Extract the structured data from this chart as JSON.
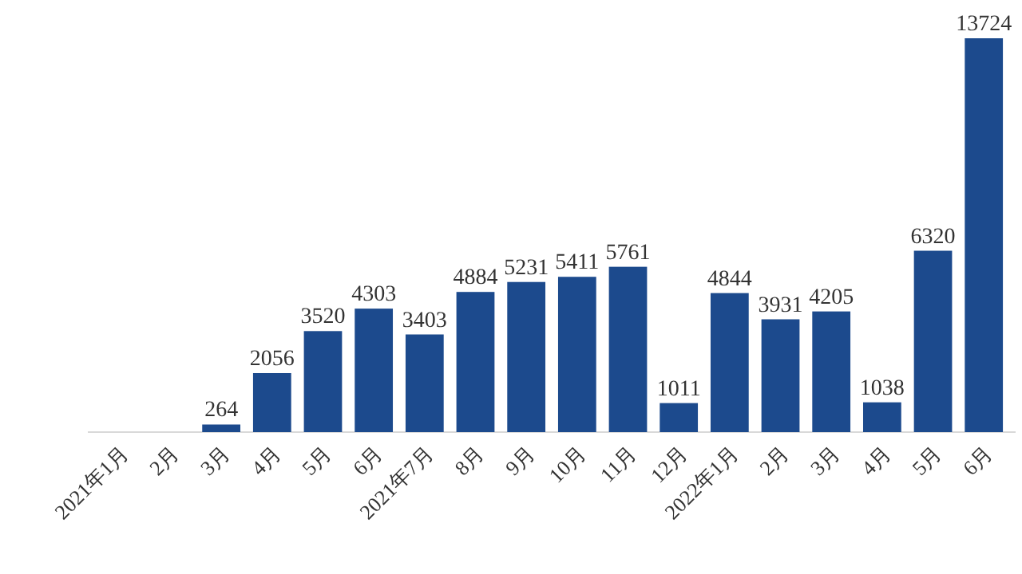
{
  "chart_data": {
    "type": "bar",
    "categories": [
      "2021年1月",
      "2月",
      "3月",
      "4月",
      "5月",
      "6月",
      "2021年7月",
      "8月",
      "9月",
      "10月",
      "11月",
      "12月",
      "2022年1月",
      "2月",
      "3月",
      "4月",
      "5月",
      "6月"
    ],
    "values": [
      null,
      null,
      264,
      2056,
      3520,
      4303,
      3403,
      4884,
      5231,
      5411,
      5761,
      1011,
      4844,
      3931,
      4205,
      1038,
      6320,
      13724
    ],
    "color": "#1c4a8d",
    "data_labels": true
  }
}
